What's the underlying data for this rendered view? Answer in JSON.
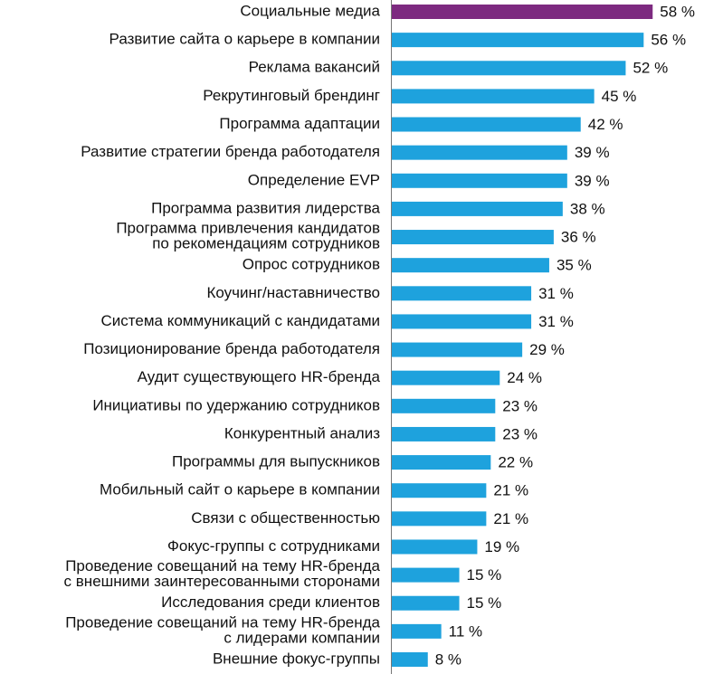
{
  "chart_data": {
    "type": "bar",
    "orientation": "horizontal",
    "categories": [
      "Социальные медиа",
      "Развитие сайта о карьере в компании",
      "Реклама вакансий",
      "Рекрутинговый брендинг",
      "Программа адаптации",
      "Развитие стратегии бренда работодателя",
      "Определение EVP",
      "Программа развития лидерства",
      "Программа привлечения кандидатов\nпо рекомендациям сотрудников",
      "Опрос сотрудников",
      "Коучинг/наставничество",
      "Система коммуникаций с кандидатами",
      "Позиционирование бренда работодателя",
      "Аудит существующего HR-бренда",
      "Инициативы по удержанию сотрудников",
      "Конкурентный анализ",
      "Программы для выпускников",
      "Мобильный сайт о карьере в компании",
      "Связи с общественностью",
      "Фокус-группы с сотрудниками",
      "Проведение совещаний на тему HR-бренда\nс внешними заинтересованными сторонами",
      "Исследования среди клиентов",
      "Проведение совещаний на тему HR-бренда\nс лидерами компании",
      "Внешние фокус-группы"
    ],
    "values": [
      58,
      56,
      52,
      45,
      42,
      39,
      39,
      38,
      36,
      35,
      31,
      31,
      29,
      24,
      23,
      23,
      22,
      21,
      21,
      19,
      15,
      15,
      11,
      8
    ],
    "value_labels": [
      "58 %",
      "56 %",
      "52 %",
      "45 %",
      "42 %",
      "39 %",
      "39 %",
      "38 %",
      "36 %",
      "35 %",
      "31 %",
      "31 %",
      "29 %",
      "24 %",
      "23 %",
      "23 %",
      "22 %",
      "21 %",
      "21 %",
      "19 %",
      "15 %",
      "15 %",
      "11 %",
      "8 %"
    ],
    "colors": [
      "#7d2a80",
      "#1ea2dd",
      "#1ea2dd",
      "#1ea2dd",
      "#1ea2dd",
      "#1ea2dd",
      "#1ea2dd",
      "#1ea2dd",
      "#1ea2dd",
      "#1ea2dd",
      "#1ea2dd",
      "#1ea2dd",
      "#1ea2dd",
      "#1ea2dd",
      "#1ea2dd",
      "#1ea2dd",
      "#1ea2dd",
      "#1ea2dd",
      "#1ea2dd",
      "#1ea2dd",
      "#1ea2dd",
      "#1ea2dd",
      "#1ea2dd",
      "#1ea2dd"
    ]
  }
}
